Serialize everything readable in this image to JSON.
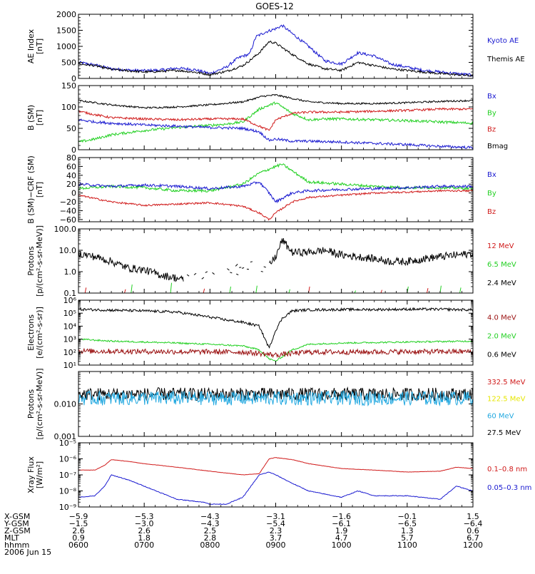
{
  "title": "GOES-12",
  "colors": {
    "blue": "#1a1ad0",
    "black": "#000000",
    "red": "#d01a1a",
    "green": "#22d022",
    "darkred": "#9a1010",
    "yellow": "#e6e600",
    "cyan": "#22a8e0"
  },
  "chart_data": [
    {
      "id": "ae",
      "type": "line",
      "ylabel": [
        "AE Index",
        "[nT]"
      ],
      "ylim": [
        0,
        2000
      ],
      "yticks": [
        0,
        500,
        1000,
        1500,
        2000
      ],
      "ytick_labels": [
        "0",
        "500",
        "1000",
        "1500",
        "2000"
      ],
      "legend": [
        {
          "label": "Kyoto AE",
          "color": "#1a1ad0"
        },
        {
          "label": "Themis AE",
          "color": "#000000"
        }
      ],
      "series": [
        {
          "name": "Kyoto AE",
          "color": "#1a1ad0",
          "noise": 45,
          "x": [
            6.0,
            6.25,
            6.5,
            6.75,
            7.0,
            7.25,
            7.5,
            7.75,
            8.0,
            8.25,
            8.4,
            8.5,
            8.6,
            8.7,
            8.85,
            9.0,
            9.1,
            9.25,
            9.5,
            9.75,
            10.0,
            10.25,
            10.5,
            10.75,
            11.0,
            11.25,
            11.5,
            11.75,
            12.0
          ],
          "y": [
            500,
            420,
            300,
            260,
            240,
            260,
            320,
            280,
            150,
            350,
            600,
            700,
            750,
            1300,
            1450,
            1550,
            1650,
            1400,
            1000,
            550,
            450,
            800,
            700,
            450,
            350,
            250,
            200,
            150,
            100
          ]
        },
        {
          "name": "Themis AE",
          "color": "#000000",
          "noise": 35,
          "x": [
            6.0,
            6.25,
            6.5,
            6.75,
            7.0,
            7.25,
            7.5,
            7.75,
            8.0,
            8.25,
            8.5,
            8.6,
            8.75,
            8.9,
            9.0,
            9.25,
            9.5,
            9.75,
            10.0,
            10.25,
            10.5,
            10.75,
            11.0,
            11.25,
            11.5,
            11.75,
            12.0
          ],
          "y": [
            450,
            400,
            280,
            240,
            200,
            220,
            250,
            200,
            120,
            220,
            400,
            550,
            800,
            1150,
            1100,
            750,
            450,
            300,
            250,
            500,
            400,
            300,
            250,
            200,
            150,
            120,
            80
          ]
        }
      ]
    },
    {
      "id": "bgsm",
      "type": "line",
      "ylabel": [
        "B (SM)",
        "[nT]"
      ],
      "ylim": [
        0,
        150
      ],
      "yticks": [
        0,
        50,
        100,
        150
      ],
      "ytick_labels": [
        "0",
        "50",
        "100",
        "150"
      ],
      "legend": [
        {
          "label": "Bx",
          "color": "#1a1ad0"
        },
        {
          "label": "By",
          "color": "#22d022"
        },
        {
          "label": "Bz",
          "color": "#d01a1a"
        },
        {
          "label": "Bmag",
          "color": "#000000"
        }
      ],
      "series": [
        {
          "name": "Bmag",
          "color": "#000000",
          "noise": 2,
          "x": [
            6.0,
            6.25,
            6.5,
            7.0,
            7.5,
            8.0,
            8.5,
            8.8,
            9.0,
            9.25,
            9.5,
            10.0,
            10.5,
            11.0,
            11.5,
            12.0
          ],
          "y": [
            115,
            110,
            105,
            98,
            100,
            105,
            112,
            125,
            128,
            120,
            112,
            108,
            108,
            110,
            113,
            115
          ]
        },
        {
          "name": "By",
          "color": "#22d022",
          "noise": 3,
          "x": [
            6.0,
            6.25,
            6.5,
            7.0,
            7.5,
            8.0,
            8.25,
            8.5,
            8.75,
            9.0,
            9.1,
            9.25,
            9.5,
            9.75,
            10.0,
            10.5,
            11.0,
            11.5,
            12.0
          ],
          "y": [
            18,
            25,
            35,
            45,
            52,
            57,
            60,
            65,
            95,
            110,
            100,
            85,
            70,
            72,
            72,
            70,
            68,
            65,
            62
          ]
        },
        {
          "name": "Bz",
          "color": "#d01a1a",
          "noise": 2.5,
          "x": [
            6.0,
            6.25,
            6.5,
            7.0,
            7.5,
            8.0,
            8.5,
            8.75,
            8.9,
            9.0,
            9.25,
            9.5,
            10.0,
            10.5,
            11.0,
            11.5,
            12.0
          ],
          "y": [
            90,
            82,
            75,
            72,
            70,
            72,
            72,
            55,
            45,
            70,
            85,
            88,
            88,
            90,
            92,
            95,
            95
          ]
        },
        {
          "name": "Bx",
          "color": "#1a1ad0",
          "noise": 3,
          "x": [
            6.0,
            6.25,
            6.5,
            7.0,
            7.5,
            8.0,
            8.5,
            8.75,
            8.9,
            9.0,
            9.25,
            9.5,
            10.0,
            10.5,
            11.0,
            11.5,
            12.0
          ],
          "y": [
            70,
            65,
            62,
            58,
            55,
            52,
            50,
            42,
            22,
            25,
            20,
            20,
            18,
            15,
            12,
            8,
            5
          ]
        }
      ]
    },
    {
      "id": "bdiff",
      "type": "line",
      "ylabel": [
        "B (SM)−CRF (SM)",
        "[nT]"
      ],
      "ylim": [
        -65,
        80
      ],
      "yticks": [
        -60,
        -40,
        -20,
        0,
        20,
        40,
        60,
        80
      ],
      "ytick_labels": [
        "−60",
        "−40",
        "−20",
        "0",
        "20",
        "40",
        "60",
        "80"
      ],
      "legend": [
        {
          "label": "Bx",
          "color": "#1a1ad0"
        },
        {
          "label": "By",
          "color": "#22d022"
        },
        {
          "label": "Bz",
          "color": "#d01a1a"
        }
      ],
      "series": [
        {
          "name": "By",
          "color": "#22d022",
          "noise": 3,
          "x": [
            6.0,
            6.5,
            7.0,
            7.5,
            8.0,
            8.5,
            8.75,
            9.0,
            9.1,
            9.25,
            9.5,
            10.0,
            10.5,
            11.0,
            11.5,
            12.0
          ],
          "y": [
            10,
            15,
            12,
            5,
            5,
            20,
            45,
            60,
            65,
            50,
            25,
            20,
            15,
            12,
            12,
            10
          ]
        },
        {
          "name": "Bx",
          "color": "#1a1ad0",
          "noise": 3,
          "x": [
            6.0,
            6.5,
            7.0,
            7.5,
            8.0,
            8.5,
            8.75,
            8.9,
            9.0,
            9.25,
            9.5,
            10.0,
            10.5,
            11.0,
            11.5,
            12.0
          ],
          "y": [
            20,
            15,
            18,
            15,
            10,
            15,
            25,
            0,
            -20,
            0,
            5,
            8,
            10,
            12,
            15,
            15
          ]
        },
        {
          "name": "Bz",
          "color": "#d01a1a",
          "noise": 2,
          "x": [
            6.0,
            6.5,
            7.0,
            7.5,
            8.0,
            8.5,
            8.75,
            8.9,
            9.0,
            9.25,
            9.5,
            10.0,
            10.5,
            11.0,
            11.5,
            12.0
          ],
          "y": [
            -5,
            -20,
            -28,
            -25,
            -22,
            -30,
            -45,
            -60,
            -45,
            -20,
            -10,
            -5,
            0,
            2,
            5,
            5
          ]
        }
      ]
    },
    {
      "id": "protons_low",
      "type": "line",
      "log": true,
      "ylabel": [
        "Protons",
        "[p/(cm²-s-sr-MeV)]"
      ],
      "ylim": [
        0.1,
        100
      ],
      "yticks": [
        0.1,
        1,
        10,
        100
      ],
      "ytick_labels": [
        "0.1",
        "1.0",
        "10.0",
        "100.0"
      ],
      "legend": [
        {
          "label": "12 MeV",
          "color": "#d01a1a"
        },
        {
          "label": "6.5 MeV",
          "color": "#22d022"
        },
        {
          "label": "2.4 MeV",
          "color": "#000000"
        }
      ],
      "series": [
        {
          "name": "2.4 MeV",
          "color": "#000000",
          "noise": 0.18,
          "gaps": [
            [
              7.6,
              8.9
            ]
          ],
          "x": [
            6.0,
            6.25,
            6.5,
            6.75,
            7.0,
            7.25,
            7.5,
            7.6,
            8.9,
            9.0,
            9.1,
            9.25,
            9.5,
            9.75,
            10.0,
            10.25,
            10.5,
            10.75,
            11.0,
            11.25,
            11.5,
            11.75,
            12.0
          ],
          "y": [
            7,
            5,
            3,
            1.5,
            1.2,
            0.7,
            0.5,
            0.4,
            2.0,
            5.0,
            30,
            8,
            8,
            10,
            6,
            5,
            4,
            3,
            3,
            4,
            5,
            6,
            7
          ]
        },
        {
          "name": "6.5 MeV",
          "color": "#22d022",
          "noise": 0,
          "sparse": true,
          "x": [
            6.8,
            7.4,
            8.3,
            8.7,
            9.2,
            10.2,
            11.0,
            11.5,
            11.8
          ],
          "y": [
            0.25,
            0.3,
            0.2,
            0.22,
            0.15,
            0.13,
            0.2,
            0.22,
            0.18
          ]
        },
        {
          "name": "12 MeV",
          "color": "#d01a1a",
          "noise": 0,
          "sparse": true,
          "x": [
            6.1,
            6.7,
            7.9,
            9.5,
            10.6,
            11.3
          ],
          "y": [
            0.18,
            0.15,
            0.16,
            0.2,
            0.14,
            0.17
          ]
        }
      ]
    },
    {
      "id": "electrons",
      "type": "line",
      "log": true,
      "ylabel": [
        "Electrons",
        "[e/(cm²-s-sr)]"
      ],
      "ylim": [
        10,
        1000000
      ],
      "yticks": [
        10,
        100,
        1000,
        10000,
        100000,
        1000000
      ],
      "ytick_labels": [
        "10¹",
        "10²",
        "10³",
        "10⁴",
        "10⁵",
        "10⁶"
      ],
      "legend": [
        {
          "label": "4.0 MeV",
          "color": "#9a1010"
        },
        {
          "label": "2.0 MeV",
          "color": "#22d022"
        },
        {
          "label": "0.6 MeV",
          "color": "#000000"
        }
      ],
      "series": [
        {
          "name": "0.6 MeV",
          "color": "#000000",
          "noise": 0.1,
          "x": [
            6.0,
            6.5,
            7.0,
            7.5,
            8.0,
            8.25,
            8.5,
            8.75,
            8.9,
            9.0,
            9.1,
            9.25,
            9.5,
            10.0,
            10.5,
            11.0,
            11.5,
            12.0
          ],
          "y": [
            200000,
            170000,
            150000,
            120000,
            50000,
            30000,
            20000,
            10000,
            200,
            5000,
            40000,
            150000,
            180000,
            190000,
            190000,
            200000,
            200000,
            180000
          ]
        },
        {
          "name": "2.0 MeV",
          "color": "#22d022",
          "noise": 0.06,
          "x": [
            6.0,
            6.5,
            7.0,
            7.5,
            8.0,
            8.5,
            8.75,
            8.9,
            9.0,
            9.25,
            9.5,
            10.0,
            10.5,
            11.0,
            11.5,
            12.0
          ],
          "y": [
            1000,
            700,
            600,
            500,
            400,
            300,
            150,
            30,
            20,
            150,
            400,
            500,
            550,
            600,
            650,
            700
          ]
        },
        {
          "name": "4.0 MeV",
          "color": "#9a1010",
          "noise": 0.2,
          "x": [
            6.0,
            8.5,
            9.0,
            9.5,
            12.0
          ],
          "y": [
            120,
            100,
            60,
            100,
            110
          ]
        }
      ]
    },
    {
      "id": "protons_high",
      "type": "line",
      "log": true,
      "ylabel": [
        "Protons",
        "[p/(cm²-s-sr-MeV)]"
      ],
      "ylim": [
        0.001,
        0.1
      ],
      "yticks": [
        0.001,
        0.01,
        0.1
      ],
      "ytick_labels": [
        "0.001",
        "0.010",
        ""
      ],
      "legend": [
        {
          "label": "332.5 MeV",
          "color": "#d01a1a"
        },
        {
          "label": "122.5 MeV",
          "color": "#e6e600"
        },
        {
          "label": "60 MeV",
          "color": "#22a8e0"
        },
        {
          "label": "27.5 MeV",
          "color": "#000000"
        }
      ],
      "series": [
        {
          "name": "27.5 MeV",
          "color": "#000000",
          "noise": 0.2,
          "x": [
            6.0,
            12.0
          ],
          "y": [
            0.02,
            0.02
          ]
        },
        {
          "name": "60 MeV",
          "color": "#22a8e0",
          "noise": 0.22,
          "x": [
            6.0,
            12.0
          ],
          "y": [
            0.015,
            0.015
          ]
        }
      ]
    },
    {
      "id": "xray",
      "type": "line",
      "log": true,
      "ylabel": [
        "Xray Flux",
        "[W/m²]"
      ],
      "ylim": [
        1e-09,
        1e-05
      ],
      "yticks": [
        1e-09,
        1e-08,
        1e-07,
        1e-06,
        1e-05
      ],
      "ytick_labels": [
        "10⁻⁹",
        "10⁻⁸",
        "10⁻⁷",
        "10⁻⁶",
        "10⁻⁵"
      ],
      "legend": [
        {
          "label": "0.1–0.8 nm",
          "color": "#d01a1a"
        },
        {
          "label": "0.05–0.3 nm",
          "color": "#1a1ad0"
        }
      ],
      "series": [
        {
          "name": "0.1–0.8 nm",
          "color": "#d01a1a",
          "noise": 0.01,
          "x": [
            6.0,
            6.25,
            6.4,
            6.5,
            6.75,
            7.0,
            7.5,
            8.0,
            8.5,
            8.75,
            8.9,
            9.0,
            9.25,
            9.5,
            10.0,
            10.25,
            10.5,
            11.0,
            11.5,
            11.75,
            12.0
          ],
          "y": [
            2e-07,
            2e-07,
            4e-07,
            9e-07,
            7e-07,
            5e-07,
            3e-07,
            1.7e-07,
            1e-07,
            1.2e-07,
            1e-06,
            1.2e-06,
            9e-07,
            5e-07,
            2.5e-07,
            2.2e-07,
            2e-07,
            1.5e-07,
            1.7e-07,
            3e-07,
            2.5e-07
          ]
        },
        {
          "name": "0.05–0.3 nm",
          "color": "#1a1ad0",
          "noise": 0.02,
          "x": [
            6.0,
            6.25,
            6.4,
            6.5,
            6.75,
            7.0,
            7.5,
            7.9,
            8.0,
            8.25,
            8.5,
            8.75,
            8.9,
            9.0,
            9.25,
            9.5,
            10.0,
            10.25,
            10.5,
            11.0,
            11.5,
            11.75,
            12.0
          ],
          "y": [
            4e-09,
            5e-09,
            2e-08,
            1e-07,
            5e-08,
            2e-08,
            3e-09,
            2e-09,
            1.5e-09,
            1.5e-09,
            4e-09,
            1e-07,
            1.5e-07,
            1e-07,
            3e-08,
            1e-08,
            4e-09,
            1e-08,
            5e-09,
            5e-09,
            3e-09,
            2e-08,
            1e-08
          ]
        }
      ]
    }
  ],
  "x_axis": {
    "range": [
      6,
      12
    ],
    "ticks": [
      6,
      7,
      8,
      9,
      10,
      11,
      12
    ],
    "rows": [
      {
        "label": "X-GSM",
        "values": [
          "−5.9",
          "−5.3",
          "−4.3",
          "−3.1",
          "−1.6",
          "−0.1",
          "1.5"
        ]
      },
      {
        "label": "Y-GSM",
        "values": [
          "−1.5",
          "−3.0",
          "−4.3",
          "−5.4",
          "−6.1",
          "−6.5",
          "−6.4"
        ]
      },
      {
        "label": "Z-GSM",
        "values": [
          "2.6",
          "2.6",
          "2.5",
          "2.3",
          "1.9",
          "1.3",
          "0.6"
        ]
      },
      {
        "label": "MLT",
        "values": [
          "0.9",
          "1.8",
          "2.8",
          "3.7",
          "4.7",
          "5.7",
          "6.7"
        ]
      },
      {
        "label": "hhmm",
        "values": [
          "0600",
          "0700",
          "0800",
          "0900",
          "1000",
          "1100",
          "1200"
        ]
      }
    ],
    "date": "2006 Jun 15"
  }
}
